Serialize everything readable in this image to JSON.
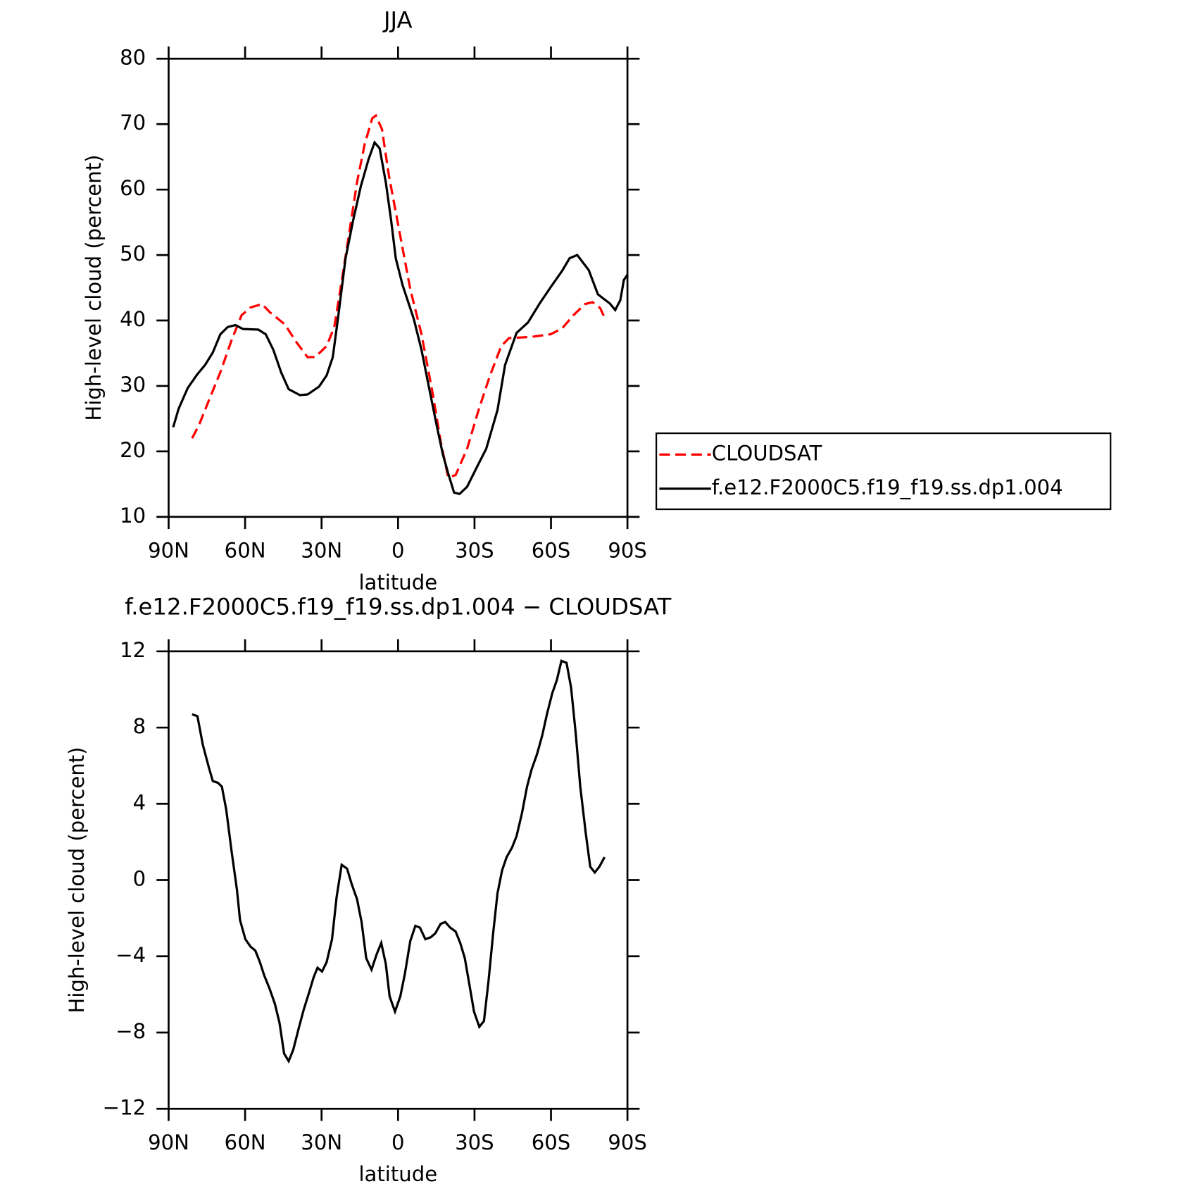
{
  "chart_data": [
    {
      "type": "line",
      "title": "JJA",
      "xlabel": "latitude",
      "ylabel": "High-level cloud (percent)",
      "xlim": [
        90,
        -90
      ],
      "xticks": [
        {
          "value": 90,
          "label": "90N"
        },
        {
          "value": 60,
          "label": "60N"
        },
        {
          "value": 30,
          "label": "30N"
        },
        0,
        {
          "value": -30,
          "label": "30S"
        },
        {
          "value": -60,
          "label": "60S"
        },
        {
          "value": -90,
          "label": "90S"
        }
      ],
      "ylim": [
        10,
        80
      ],
      "yticks": [
        10,
        20,
        30,
        40,
        50,
        60,
        70,
        80
      ],
      "legend": "right",
      "series": [
        {
          "name": "CLOUDSAT",
          "color": "#ff0000",
          "linestyle": "dashed",
          "x": [
            80.8,
            78.1,
            74.2,
            69.7,
            65.3,
            61.4,
            57.8,
            53.3,
            50.4,
            44.4,
            39.9,
            35.5,
            32.5,
            28.0,
            25.0,
            22.1,
            19.1,
            16.1,
            13.1,
            10.1,
            8.7,
            6.3,
            3.6,
            -0.3,
            -4.8,
            -9.2,
            -13.7,
            -16.7,
            -19.7,
            -22.6,
            -27.1,
            -31.6,
            -36.0,
            -40.5,
            -43.5,
            -52.4,
            -59.9,
            -64.4,
            -68.8,
            -73.3,
            -76.3,
            -79.3,
            -81.3
          ],
          "values": [
            22.0,
            24.0,
            27.8,
            32.1,
            37.0,
            40.8,
            42.0,
            42.5,
            41.3,
            39.4,
            36.7,
            34.4,
            34.4,
            36.1,
            39.0,
            46.0,
            53.5,
            61.1,
            66.9,
            70.9,
            71.3,
            69.2,
            62.2,
            54.1,
            44.8,
            37.9,
            28.6,
            21.6,
            16.0,
            16.4,
            20.4,
            26.3,
            31.5,
            36.1,
            37.3,
            37.5,
            37.9,
            38.8,
            40.8,
            42.5,
            42.8,
            41.9,
            40.2
          ]
        },
        {
          "name": "f.e12.F2000C5.f19_f19.ss.dp1.004",
          "color": "#000000",
          "linestyle": "solid",
          "x": [
            88.2,
            86.1,
            82.5,
            78.7,
            75.7,
            72.7,
            69.7,
            66.8,
            63.8,
            60.8,
            54.8,
            51.9,
            48.9,
            45.9,
            42.9,
            38.5,
            35.5,
            31.0,
            28.0,
            25.6,
            23.6,
            20.6,
            17.6,
            14.6,
            11.6,
            9.2,
            7.2,
            4.8,
            2.7,
            0.9,
            -1.8,
            -6.2,
            -9.2,
            -12.2,
            -15.2,
            -17.6,
            -19.7,
            -22.0,
            -24.1,
            -27.1,
            -31.6,
            -34.6,
            -39.0,
            -42.0,
            -46.5,
            -51.0,
            -55.4,
            -59.9,
            -64.4,
            -67.3,
            -70.3,
            -74.8,
            -78.4,
            -83.1,
            -85.2,
            -87.2,
            -88.6,
            -90.0
          ],
          "values": [
            23.7,
            26.5,
            29.7,
            31.8,
            33.2,
            35.1,
            37.9,
            39.0,
            39.3,
            38.7,
            38.6,
            37.9,
            35.5,
            32.1,
            29.5,
            28.6,
            28.7,
            29.9,
            31.6,
            34.4,
            40.2,
            49.5,
            55.3,
            60.5,
            64.6,
            67.2,
            66.3,
            61.1,
            55.3,
            49.5,
            45.4,
            40.2,
            35.5,
            29.7,
            23.9,
            19.5,
            16.6,
            13.7,
            13.5,
            14.6,
            18.1,
            20.4,
            26.3,
            33.2,
            38.1,
            39.7,
            42.5,
            45.1,
            47.6,
            49.5,
            50.0,
            47.7,
            44.0,
            42.6,
            41.6,
            43.1,
            46.2,
            47.0
          ]
        }
      ]
    },
    {
      "type": "line",
      "title": "f.e12.F2000C5.f19_f19.ss.dp1.004 − CLOUDSAT",
      "xlabel": "latitude",
      "ylabel": "High-level cloud (percent)",
      "xlim": [
        90,
        -90
      ],
      "xticks": [
        {
          "value": 90,
          "label": "90N"
        },
        {
          "value": 60,
          "label": "60N"
        },
        {
          "value": 30,
          "label": "30N"
        },
        0,
        {
          "value": -30,
          "label": "30S"
        },
        {
          "value": -60,
          "label": "60S"
        },
        {
          "value": -90,
          "label": "90S"
        }
      ],
      "ylim": [
        -12,
        12
      ],
      "yticks": [
        {
          "value": -12,
          "label": "−12"
        },
        {
          "value": -8,
          "label": "−8"
        },
        {
          "value": -4,
          "label": "−4"
        },
        0,
        4,
        8,
        12
      ],
      "series": [
        {
          "color": "#000000",
          "linestyle": "solid",
          "x": [
            80.8,
            78.7,
            76.6,
            74.2,
            72.7,
            70.6,
            69.1,
            67.4,
            65.3,
            63.2,
            62.0,
            59.9,
            57.8,
            56.0,
            54.2,
            52.5,
            50.4,
            48.3,
            46.5,
            44.7,
            42.9,
            41.1,
            39.0,
            37.0,
            34.9,
            33.1,
            31.6,
            29.8,
            28.0,
            25.9,
            24.1,
            22.1,
            20.0,
            18.2,
            16.1,
            14.3,
            12.5,
            10.4,
            8.4,
            6.6,
            4.8,
            3.3,
            1.2,
            -0.9,
            -2.7,
            -4.8,
            -6.8,
            -8.6,
            -10.7,
            -12.8,
            -14.6,
            -16.7,
            -18.5,
            -20.5,
            -22.6,
            -24.4,
            -26.2,
            -28.0,
            -29.8,
            -31.9,
            -33.7,
            -35.5,
            -37.3,
            -39.0,
            -40.8,
            -42.6,
            -44.7,
            -46.5,
            -48.6,
            -50.6,
            -52.4,
            -54.5,
            -56.6,
            -58.4,
            -60.5,
            -62.3,
            -64.1,
            -66.1,
            -67.9,
            -69.7,
            -71.5,
            -73.6,
            -75.4,
            -77.2,
            -79.0,
            -81.0
          ],
          "values": [
            8.7,
            8.6,
            7.1,
            5.9,
            5.2,
            5.1,
            4.9,
            3.7,
            1.5,
            -0.5,
            -2.1,
            -3.1,
            -3.5,
            -3.7,
            -4.3,
            -5.0,
            -5.7,
            -6.5,
            -7.5,
            -9.1,
            -9.5,
            -8.9,
            -7.8,
            -6.8,
            -5.9,
            -5.1,
            -4.6,
            -4.8,
            -4.3,
            -3.1,
            -0.9,
            0.8,
            0.6,
            -0.2,
            -1.0,
            -2.2,
            -4.1,
            -4.7,
            -3.9,
            -3.3,
            -4.4,
            -6.1,
            -6.9,
            -6.1,
            -4.9,
            -3.2,
            -2.4,
            -2.5,
            -3.1,
            -3.0,
            -2.8,
            -2.3,
            -2.2,
            -2.5,
            -2.7,
            -3.3,
            -4.1,
            -5.5,
            -6.9,
            -7.7,
            -7.4,
            -5.3,
            -2.8,
            -0.7,
            0.5,
            1.2,
            1.7,
            2.3,
            3.5,
            4.9,
            5.8,
            6.6,
            7.6,
            8.7,
            9.8,
            10.5,
            11.5,
            11.4,
            10.1,
            7.7,
            4.9,
            2.5,
            0.7,
            0.4,
            0.7,
            1.2
          ]
        }
      ]
    }
  ]
}
